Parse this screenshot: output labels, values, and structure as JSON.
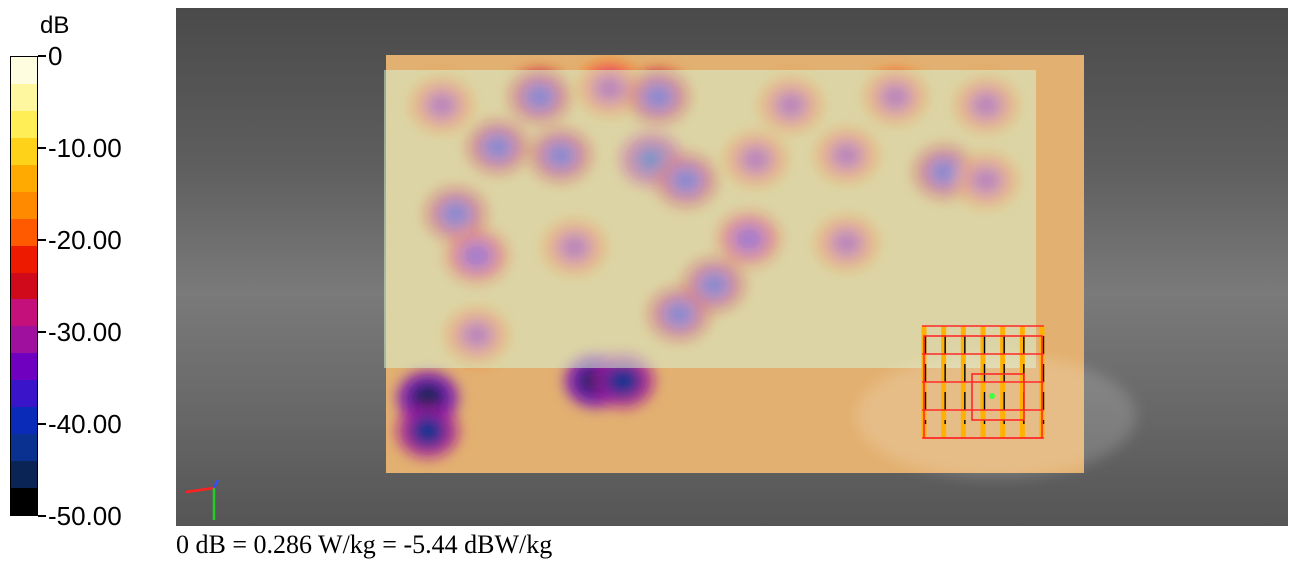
{
  "chart_data": {
    "type": "heatmap",
    "colorbar": {
      "unit": "dB",
      "range": [
        -50,
        0
      ],
      "tick_labels": [
        "0",
        "-10.00",
        "-20.00",
        "-30.00",
        "-40.00",
        "-50.00"
      ],
      "tick_values": [
        0,
        -10,
        -20,
        -30,
        -40,
        -50
      ],
      "colors": [
        "#fffde0",
        "#fff7a0",
        "#ffee55",
        "#ffd21a",
        "#ffaa00",
        "#ff8a00",
        "#ff5a00",
        "#ee1a00",
        "#d00a1a",
        "#c4107a",
        "#a0109e",
        "#7000c0",
        "#3a14c8",
        "#0a2ab8",
        "#0a3090",
        "#0a2456",
        "#000000"
      ]
    },
    "footer": "0 dB = 0.286 W/kg = -5.44 dBW/kg",
    "hotspots": [
      {
        "u": 0.08,
        "v": 0.12,
        "level": -30
      },
      {
        "u": 0.22,
        "v": 0.1,
        "level": -38
      },
      {
        "u": 0.32,
        "v": 0.08,
        "level": -32
      },
      {
        "u": 0.39,
        "v": 0.1,
        "level": -36
      },
      {
        "u": 0.58,
        "v": 0.12,
        "level": -32
      },
      {
        "u": 0.73,
        "v": 0.1,
        "level": -30
      },
      {
        "u": 0.86,
        "v": 0.12,
        "level": -30
      },
      {
        "u": 0.16,
        "v": 0.22,
        "level": -38
      },
      {
        "u": 0.25,
        "v": 0.24,
        "level": -38
      },
      {
        "u": 0.38,
        "v": 0.25,
        "level": -40
      },
      {
        "u": 0.43,
        "v": 0.3,
        "level": -36
      },
      {
        "u": 0.53,
        "v": 0.25,
        "level": -30
      },
      {
        "u": 0.66,
        "v": 0.24,
        "level": -30
      },
      {
        "u": 0.8,
        "v": 0.28,
        "level": -38
      },
      {
        "u": 0.86,
        "v": 0.3,
        "level": -32
      },
      {
        "u": 0.1,
        "v": 0.38,
        "level": -38
      },
      {
        "u": 0.13,
        "v": 0.48,
        "level": -34
      },
      {
        "u": 0.27,
        "v": 0.46,
        "level": -30
      },
      {
        "u": 0.52,
        "v": 0.44,
        "level": -34
      },
      {
        "u": 0.66,
        "v": 0.45,
        "level": -30
      },
      {
        "u": 0.47,
        "v": 0.55,
        "level": -38
      },
      {
        "u": 0.42,
        "v": 0.62,
        "level": -36
      },
      {
        "u": 0.13,
        "v": 0.67,
        "level": -30
      },
      {
        "u": 0.06,
        "v": 0.82,
        "level": -46
      },
      {
        "u": 0.06,
        "v": 0.9,
        "level": -44
      },
      {
        "u": 0.3,
        "v": 0.78,
        "level": -46
      },
      {
        "u": 0.34,
        "v": 0.78,
        "level": -44
      }
    ]
  }
}
